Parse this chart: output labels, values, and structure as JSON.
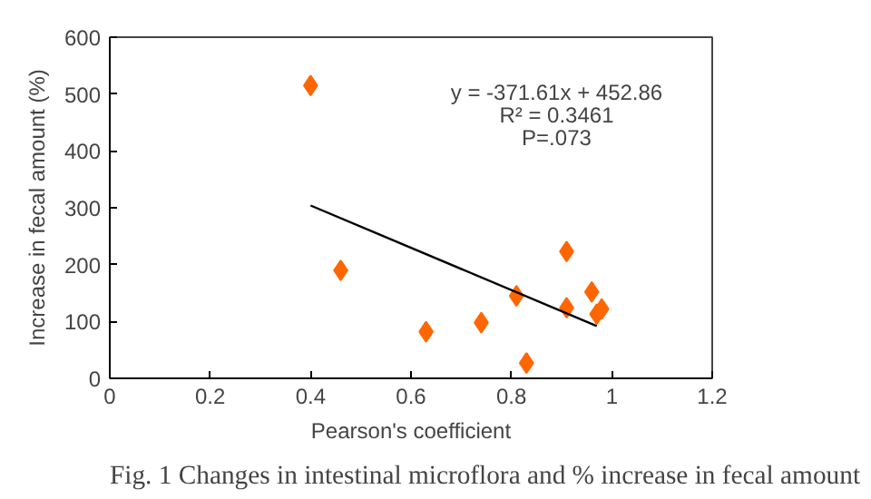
{
  "chart_data": {
    "type": "scatter",
    "xlabel": "Pearson's coefficient",
    "ylabel": "Increase in fecal amount (%)",
    "xlim": [
      0,
      1.2
    ],
    "ylim": [
      0,
      600
    ],
    "xticks": [
      0,
      0.2,
      0.4,
      0.6,
      0.8,
      1,
      1.2
    ],
    "yticks": [
      0,
      100,
      200,
      300,
      400,
      500,
      600
    ],
    "grid": false,
    "x": [
      0.4,
      0.46,
      0.63,
      0.74,
      0.81,
      0.83,
      0.91,
      0.91,
      0.96,
      0.97,
      0.98
    ],
    "series": [
      {
        "color": "#ff6600",
        "marker": "diamond",
        "values": [
          515,
          190,
          82,
          98,
          145,
          27,
          223,
          124,
          152,
          113,
          122
        ]
      },
      {
        "type": "line",
        "color": "#000000",
        "x": [
          0.4,
          0.97
        ],
        "values": [
          304,
          92
        ]
      }
    ],
    "annotations": [
      "y = -371.61x + 452.86",
      "R² = 0.3461",
      "P=.073",
      "Fig. 1 Changes in intestinal microflora and % increase in fecal amount"
    ]
  }
}
